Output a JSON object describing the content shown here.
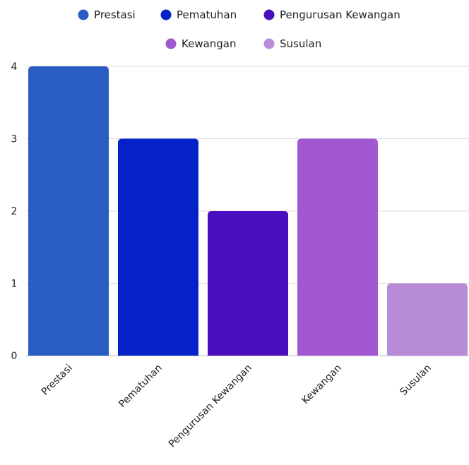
{
  "chart_data": {
    "type": "bar",
    "categories": [
      "Prestasi",
      "Pematuhan",
      "Pengurusan Kewangan",
      "Kewangan",
      "Susulan"
    ],
    "values": [
      4,
      3,
      2,
      3,
      1
    ],
    "colors": [
      "#2a5dc4",
      "#0422c8",
      "#4a0fbf",
      "#a057d0",
      "#b98cd8"
    ],
    "legend": {
      "placement": "top",
      "entries": [
        "Prestasi",
        "Pematuhan",
        "Pengurusan Kewangan",
        "Kewangan",
        "Susulan"
      ]
    },
    "y_ticks": [
      "0",
      "1",
      "2",
      "3",
      "4"
    ],
    "ylim": [
      0,
      4
    ],
    "grid": true,
    "title": "",
    "xlabel": "",
    "ylabel": ""
  }
}
